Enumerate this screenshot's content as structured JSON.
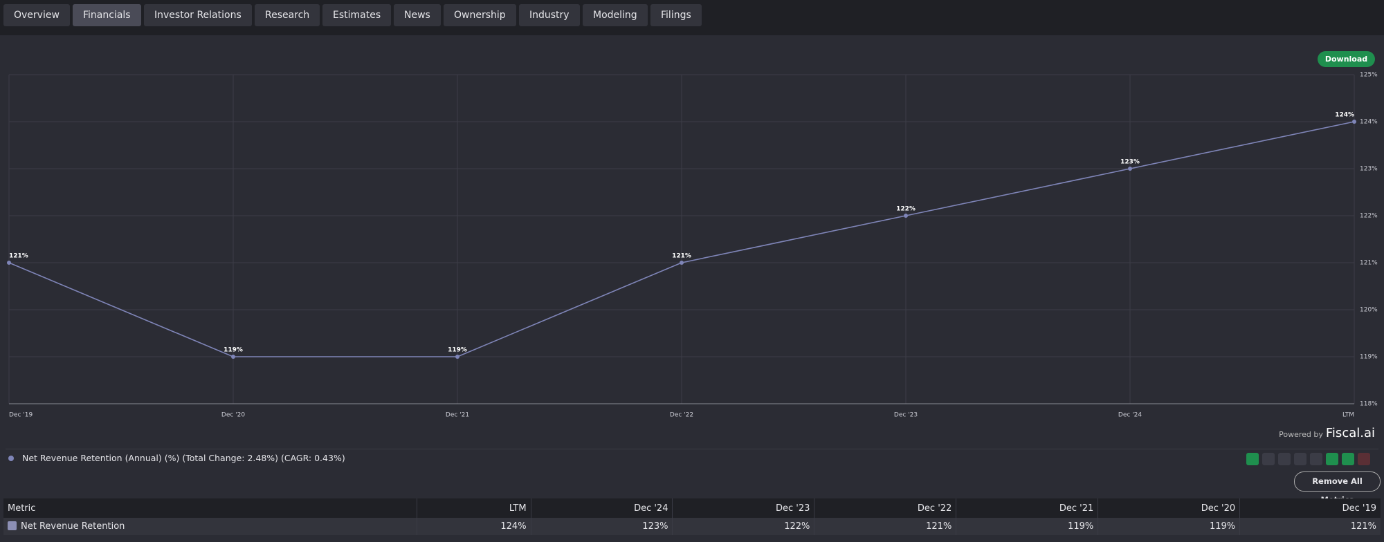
{
  "tabs": [
    "Overview",
    "Financials",
    "Investor Relations",
    "Research",
    "Estimates",
    "News",
    "Ownership",
    "Industry",
    "Modeling",
    "Filings"
  ],
  "active_tab": 1,
  "download": "Download",
  "powered_by": "Powered by",
  "brand": "Fiscal.ai",
  "remove_all": "Remove All Metrics",
  "chart_data": {
    "type": "line",
    "categories": [
      "Dec '19",
      "Dec '20",
      "Dec '21",
      "Dec '22",
      "Dec '23",
      "Dec '24",
      "LTM"
    ],
    "series": [
      {
        "name": "Net Revenue Retention (Annual) (%) (Total Change: 2.48%) (CAGR: 0.43%)",
        "color": "#7f85b8",
        "values": [
          121,
          119,
          119,
          121,
          122,
          123,
          124
        ],
        "value_labels": [
          "121%",
          "119%",
          "119%",
          "121%",
          "122%",
          "123%",
          "124%"
        ]
      }
    ],
    "ylim": [
      118,
      125
    ],
    "yticks": [
      {
        "value": 118,
        "label": "118%"
      },
      {
        "value": 119,
        "label": "119%"
      },
      {
        "value": 120,
        "label": "120%"
      },
      {
        "value": 121,
        "label": "121%"
      },
      {
        "value": 122,
        "label": "122%"
      },
      {
        "value": 123,
        "label": "123%"
      },
      {
        "value": 124,
        "label": "124%"
      },
      {
        "value": 125,
        "label": "125%"
      }
    ],
    "grid": true
  },
  "table": {
    "header": [
      "Metric",
      "LTM",
      "Dec '24",
      "Dec '23",
      "Dec '22",
      "Dec '21",
      "Dec '20",
      "Dec '19"
    ],
    "rows": [
      [
        "Net Revenue Retention",
        "124%",
        "123%",
        "122%",
        "121%",
        "119%",
        "119%",
        "121%"
      ]
    ]
  }
}
